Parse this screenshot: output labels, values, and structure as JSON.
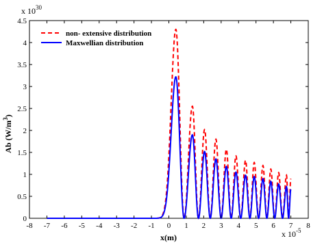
{
  "chart_data": {
    "type": "line",
    "title": "",
    "xlabel": "x(m)",
    "ylabel": "Ab (W/m",
    "ylabel_exponent": "3",
    "ylabel_close": ")",
    "x_scale_label": "x 10",
    "x_scale_exponent": "-5",
    "y_scale_label": "x 10",
    "y_scale_exponent": "30",
    "xlim": [
      -8,
      8
    ],
    "ylim": [
      0,
      4.5
    ],
    "x_ticks": [
      "-8",
      "-7",
      "-6",
      "-5",
      "-4",
      "-3",
      "-2",
      "-1",
      "0",
      "1",
      "2",
      "3",
      "4",
      "5",
      "6",
      "7",
      "8"
    ],
    "y_ticks": [
      "0",
      "0.5",
      "1",
      "1.5",
      "2",
      "2.5",
      "3",
      "3.5",
      "4",
      "4.5"
    ],
    "x_tick_values": [
      -8,
      -7,
      -6,
      -5,
      -4,
      -3,
      -2,
      -1,
      0,
      1,
      2,
      3,
      4,
      5,
      6,
      7,
      8
    ],
    "y_tick_values": [
      0,
      0.5,
      1,
      1.5,
      2,
      2.5,
      3,
      3.5,
      4,
      4.5
    ],
    "grid": false,
    "legend_position": "top-left",
    "x_data_range": [
      -7,
      7
    ],
    "series": [
      {
        "name": "non- extensive distribution",
        "color": "#ff0000",
        "dash": "dashed",
        "peaks": [
          {
            "x": 0.4,
            "y": 4.3
          },
          {
            "x": 1.35,
            "y": 2.55
          },
          {
            "x": 2.05,
            "y": 2.02
          },
          {
            "x": 2.7,
            "y": 1.8
          },
          {
            "x": 3.3,
            "y": 1.57
          },
          {
            "x": 3.85,
            "y": 1.42
          },
          {
            "x": 4.4,
            "y": 1.32
          },
          {
            "x": 4.9,
            "y": 1.27
          },
          {
            "x": 5.4,
            "y": 1.2
          },
          {
            "x": 5.85,
            "y": 1.12
          },
          {
            "x": 6.3,
            "y": 1.04
          },
          {
            "x": 6.75,
            "y": 0.98
          },
          {
            "x": 7.0,
            "y": 0.9
          }
        ]
      },
      {
        "name": "Maxwellian distribution",
        "color": "#0000ff",
        "dash": "solid",
        "peaks": [
          {
            "x": 0.4,
            "y": 3.22
          },
          {
            "x": 1.35,
            "y": 1.9
          },
          {
            "x": 2.05,
            "y": 1.52
          },
          {
            "x": 2.7,
            "y": 1.35
          },
          {
            "x": 3.3,
            "y": 1.18
          },
          {
            "x": 3.85,
            "y": 1.05
          },
          {
            "x": 4.4,
            "y": 0.98
          },
          {
            "x": 4.9,
            "y": 0.95
          },
          {
            "x": 5.4,
            "y": 0.9
          },
          {
            "x": 5.85,
            "y": 0.84
          },
          {
            "x": 6.3,
            "y": 0.78
          },
          {
            "x": 6.75,
            "y": 0.72
          },
          {
            "x": 7.0,
            "y": 0.66
          }
        ]
      }
    ]
  }
}
